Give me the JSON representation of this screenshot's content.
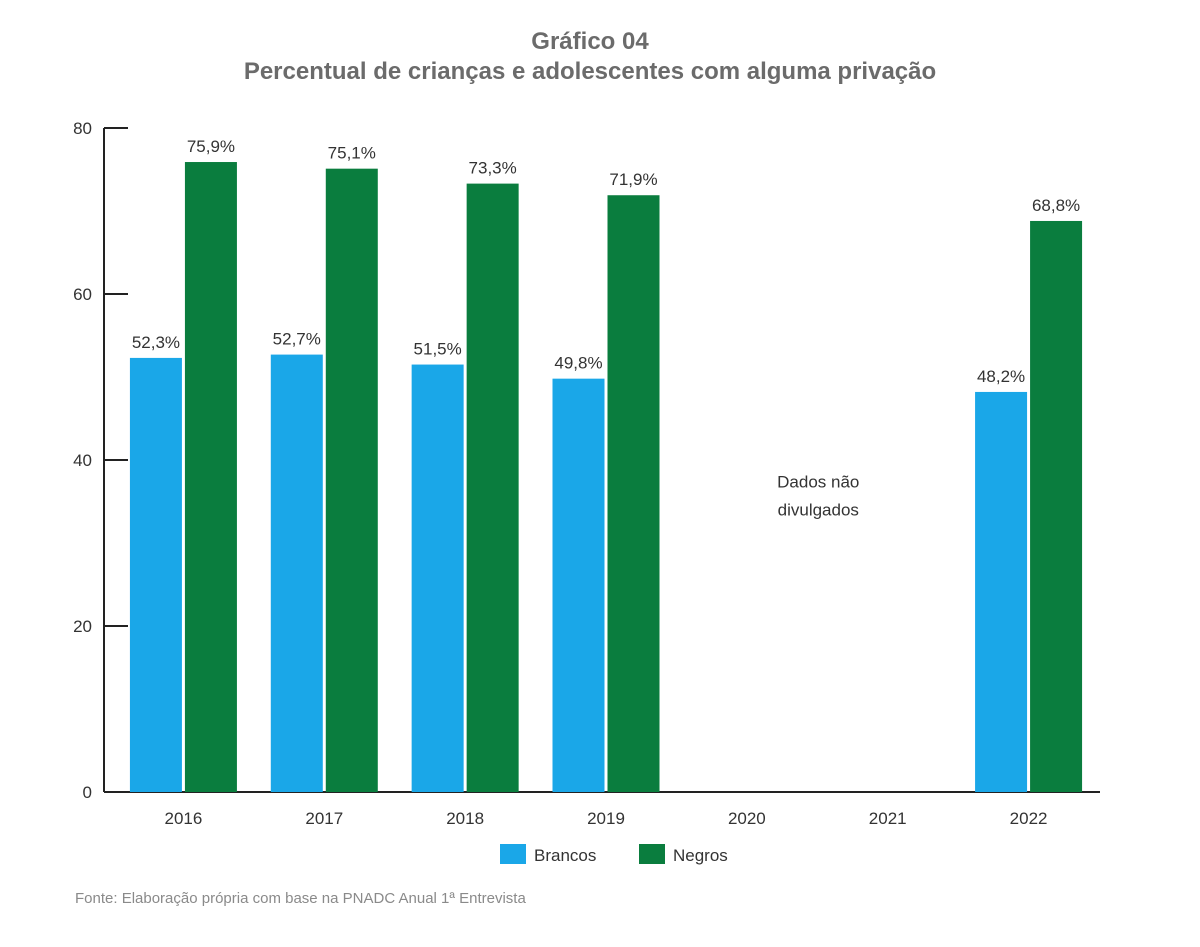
{
  "header": {
    "title": "Gráfico 04",
    "subtitle": "Percentual de crianças e adolescentes com alguma privação"
  },
  "chart_data": {
    "type": "bar",
    "title": "Gráfico 04",
    "subtitle": "Percentual de crianças e adolescentes com alguma privação",
    "categories": [
      "2016",
      "2017",
      "2018",
      "2019",
      "2020",
      "2021",
      "2022"
    ],
    "series": [
      {
        "name": "Brancos",
        "color": "#1aa7e8",
        "values": [
          52.3,
          52.7,
          51.5,
          49.8,
          null,
          null,
          48.2
        ],
        "labels": [
          "52,3%",
          "52,7%",
          "51,5%",
          "49,8%",
          null,
          null,
          "48,2%"
        ]
      },
      {
        "name": "Negros",
        "color": "#0a7d3e",
        "values": [
          75.9,
          75.1,
          73.3,
          71.9,
          null,
          null,
          68.8
        ],
        "labels": [
          "75,9%",
          "75,1%",
          "73,3%",
          "71,9%",
          null,
          null,
          "68,8%"
        ]
      }
    ],
    "ylim": [
      0,
      80
    ],
    "yticks": [
      0,
      20,
      40,
      60,
      80
    ],
    "xlabel": "",
    "ylabel": "",
    "grid": false,
    "legend": "bottom-center",
    "annotations": [
      {
        "text_lines": [
          "Dados não",
          "divulgados"
        ],
        "between": [
          "2020",
          "2021"
        ]
      }
    ]
  },
  "footer": {
    "source": "Fonte: Elaboração própria com base na PNADC Anual 1ª Entrevista"
  }
}
